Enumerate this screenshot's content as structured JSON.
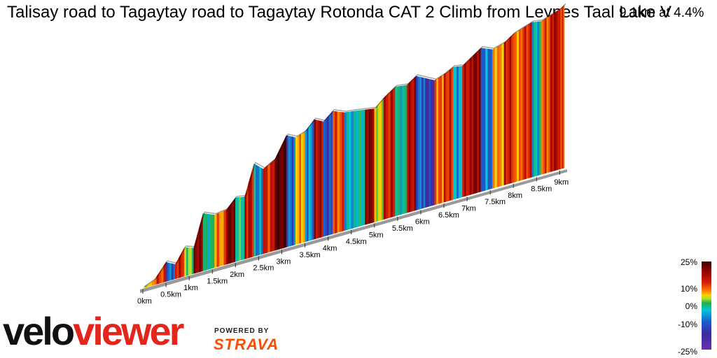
{
  "header": {
    "title": "Talisay road to Tagaytay road to Tagaytay Rotonda CAT 2 Climb from Leynes Taal Lake V",
    "stat": "9.1km at 4.4%"
  },
  "legend": {
    "labels": [
      "25%",
      "10%",
      "0%",
      "-10%",
      "-25%"
    ]
  },
  "branding": {
    "velo": "velo",
    "viewer": "viewer",
    "powered_by": "POWERED BY",
    "strava": "STRAVA"
  },
  "chart_data": {
    "type": "area",
    "title": "Talisay road to Tagaytay road to Tagaytay Rotonda CAT 2 Climb from Leynes Taal Lake V",
    "xlabel": "",
    "ylabel": "",
    "x_unit": "km",
    "xlim": [
      0,
      9.1
    ],
    "x_ticks": [
      "0km",
      "0.5km",
      "1km",
      "1.5km",
      "2km",
      "2.5km",
      "3km",
      "3.5km",
      "4km",
      "4.5km",
      "5km",
      "5.5km",
      "6km",
      "6.5km",
      "7km",
      "7.5km",
      "8km",
      "8.5km",
      "9km"
    ],
    "color_scale": {
      "label": "gradient",
      "range": [
        -25,
        25
      ],
      "ticks": [
        25,
        10,
        0,
        -10,
        -25
      ]
    },
    "distance_km": [
      0,
      0.25,
      0.5,
      0.7,
      0.9,
      1.1,
      1.3,
      1.55,
      1.8,
      2.0,
      2.2,
      2.4,
      2.6,
      2.85,
      3.1,
      3.3,
      3.5,
      3.7,
      3.9,
      4.1,
      4.35,
      4.6,
      4.8,
      5.0,
      5.2,
      5.45,
      5.7,
      5.9,
      6.1,
      6.3,
      6.5,
      6.7,
      6.9,
      7.1,
      7.3,
      7.55,
      7.8,
      8.0,
      8.2,
      8.4,
      8.6,
      8.8,
      9.0,
      9.1
    ],
    "elevation_rel": [
      0.0,
      0.03,
      0.12,
      0.09,
      0.18,
      0.16,
      0.36,
      0.33,
      0.34,
      0.4,
      0.39,
      0.58,
      0.53,
      0.57,
      0.7,
      0.67,
      0.69,
      0.75,
      0.72,
      0.77,
      0.74,
      0.73,
      0.72,
      0.71,
      0.76,
      0.81,
      0.8,
      0.84,
      0.81,
      0.78,
      0.8,
      0.83,
      0.82,
      0.86,
      0.9,
      0.87,
      0.89,
      0.93,
      0.95,
      0.97,
      0.96,
      0.98,
      1.0,
      1.02
    ],
    "gradient_pct": [
      6,
      12,
      -8,
      14,
      2,
      18,
      -2,
      9,
      20,
      -1,
      15,
      -6,
      13,
      22,
      -8,
      8,
      -6,
      16,
      -10,
      11,
      -4,
      -2,
      19,
      4,
      14,
      -3,
      16,
      -8,
      -12,
      10,
      13,
      -5,
      15,
      18,
      -7,
      8,
      14,
      9,
      13,
      -4,
      11,
      16,
      12
    ]
  }
}
